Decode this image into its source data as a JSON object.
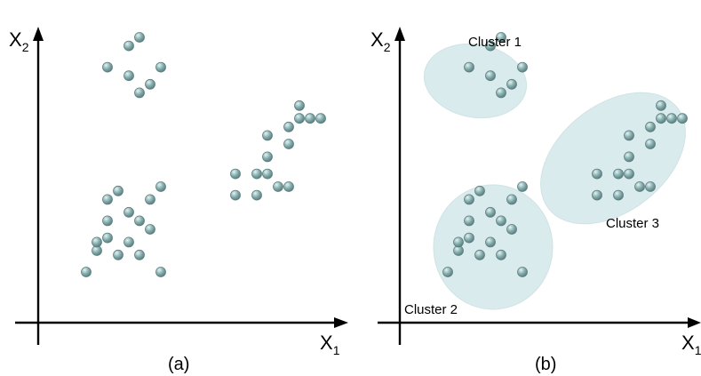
{
  "colors": {
    "point_fill": "#86afaf",
    "point_edge": "#5e7f80",
    "point_highlight": "#e6f2f2",
    "cluster_fill": "#d9ebec"
  },
  "panels": [
    {
      "id": "a",
      "label": "(a)",
      "xlabel": "X",
      "xlabel_sub": "1",
      "ylabel": "X",
      "ylabel_sub": "2",
      "clusters": []
    },
    {
      "id": "b",
      "label": "(b)",
      "xlabel": "X",
      "xlabel_sub": "1",
      "ylabel": "X",
      "ylabel_sub": "2",
      "clusters": [
        {
          "label": "Cluster 1"
        },
        {
          "label": "Cluster 2"
        },
        {
          "label": "Cluster 3"
        }
      ]
    }
  ],
  "chart_data": {
    "type": "scatter",
    "description_of_groups": "three groups of points",
    "groups": [
      {
        "x": [
          1.0,
          1.5,
          1.5,
          1.75,
          2.0,
          2.25,
          1.75
        ],
        "y": [
          5.8,
          6.3,
          5.6,
          6.5,
          5.4,
          5.8,
          5.2
        ]
      },
      {
        "x": [
          0.5,
          0.75,
          0.75,
          1.0,
          1.0,
          1.0,
          1.25,
          1.25,
          1.5,
          1.5,
          1.75,
          1.75,
          2.0,
          2.0,
          2.25,
          2.25
        ],
        "y": [
          1.0,
          1.5,
          1.7,
          1.8,
          2.2,
          2.7,
          1.4,
          2.9,
          1.7,
          2.4,
          1.4,
          2.2,
          2.0,
          2.7,
          1.0,
          3.0
        ]
      },
      {
        "x": [
          4.0,
          4.0,
          4.5,
          4.5,
          4.75,
          4.75,
          4.75,
          5.0,
          5.25,
          5.25,
          5.25,
          5.5,
          5.5,
          5.75,
          6.0
        ],
        "y": [
          2.8,
          3.3,
          2.8,
          3.3,
          3.3,
          3.7,
          4.2,
          3.0,
          3.0,
          4.0,
          4.4,
          4.6,
          4.9,
          4.6,
          4.6
        ]
      }
    ]
  }
}
